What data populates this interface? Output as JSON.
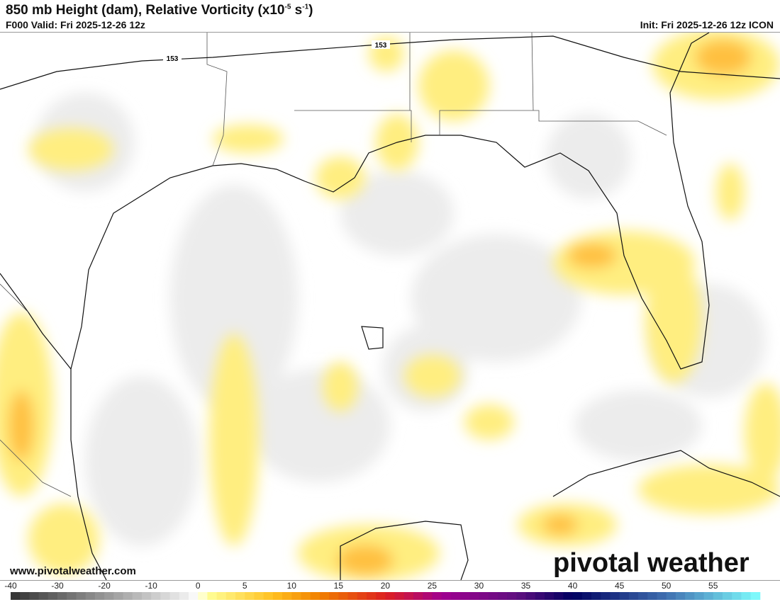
{
  "header": {
    "title": "850 mb Height (dam), Relative Vorticity (x10",
    "title_exp1": "-5",
    "title_mid": " s",
    "title_exp2": "-1",
    "title_end": ")",
    "valid": "F000 Valid: Fri 2025-12-26 12z",
    "init": "Init: Fri 2025-12-26 12z ICON"
  },
  "map": {
    "contour_labels": [
      "153",
      "153"
    ]
  },
  "footer": {
    "website": "www.pivotalweather.com",
    "logo": "pivotal weather"
  },
  "colorbar": {
    "ticks": [
      "-40",
      "-30",
      "-20",
      "-10",
      "0",
      "5",
      "10",
      "15",
      "20",
      "25",
      "30",
      "35",
      "40",
      "45",
      "50",
      "55"
    ],
    "min": -40,
    "max": 60,
    "stops": [
      {
        "v": -40,
        "c": "#333333"
      },
      {
        "v": -2,
        "c": "#f0f0f0"
      },
      {
        "v": 0,
        "c": "#ffffff"
      },
      {
        "v": 1,
        "c": "#ffff99"
      },
      {
        "v": 8,
        "c": "#ffc020"
      },
      {
        "v": 13,
        "c": "#f08000"
      },
      {
        "v": 20,
        "c": "#dd2020"
      },
      {
        "v": 26,
        "c": "#a00090"
      },
      {
        "v": 34,
        "c": "#601080"
      },
      {
        "v": 40,
        "c": "#000060"
      },
      {
        "v": 50,
        "c": "#4070b0"
      },
      {
        "v": 60,
        "c": "#80ffff"
      }
    ]
  }
}
